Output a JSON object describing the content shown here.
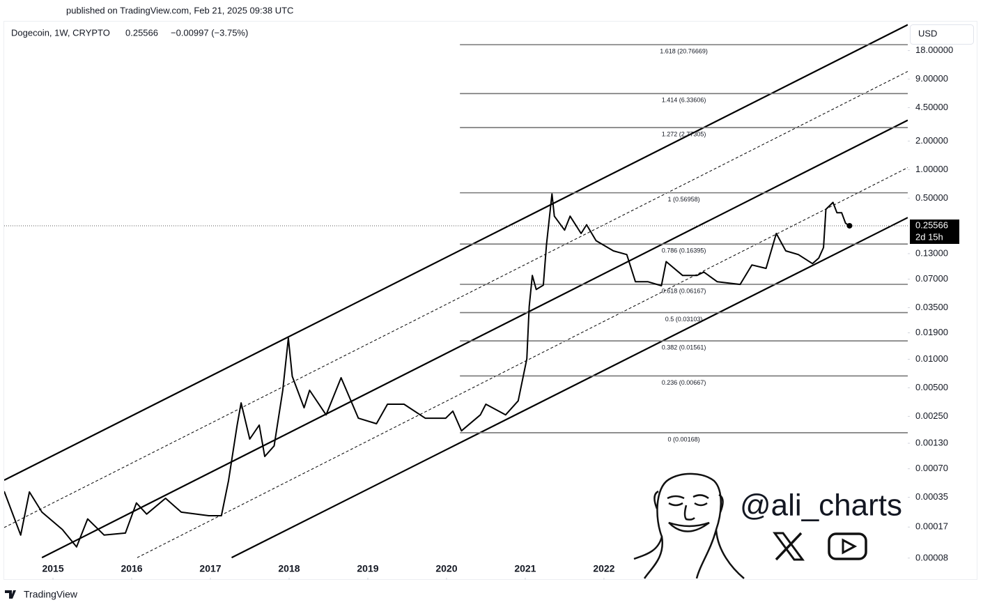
{
  "chart_data": {
    "type": "line",
    "published": "published on TradingView.com, Feb 21, 2025 09:38 UTC",
    "title": "Dogecoin, 1W, CRYPTO",
    "change": "−0.00997 (−3.75%)",
    "currency": "USD",
    "countdown": "2d 15h",
    "brand": "TradingView",
    "watermark": "@ali_charts",
    "color": "#000000",
    "log_scale": true,
    "x": [
      2014.38,
      2014.59,
      2014.7,
      2014.86,
      2015.12,
      2015.3,
      2015.44,
      2015.65,
      2015.92,
      2016.06,
      2016.19,
      2016.43,
      2016.63,
      2016.98,
      2017.14,
      2017.23,
      2017.34,
      2017.39,
      2017.5,
      2017.62,
      2017.69,
      2017.81,
      2017.92,
      2017.99,
      2018.04,
      2018.19,
      2018.26,
      2018.47,
      2018.66,
      2018.88,
      2019.11,
      2019.25,
      2019.46,
      2019.73,
      2019.99,
      2020.08,
      2020.19,
      2020.43,
      2020.5,
      2020.75,
      2020.91,
      2021.02,
      2021.05,
      2021.09,
      2021.14,
      2021.23,
      2021.27,
      2021.34,
      2021.37,
      2021.5,
      2021.57,
      2021.71,
      2021.78,
      2021.9,
      2022.12,
      2022.29,
      2022.4,
      2022.56,
      2022.73,
      2022.79,
      2023.0,
      2023.18,
      2023.27,
      2023.44,
      2023.73,
      2023.88,
      2024.06,
      2024.19,
      2024.31,
      2024.47,
      2024.65,
      2024.73,
      2024.79,
      2024.82,
      2024.91,
      2024.96,
      2025.02,
      2025.07,
      2025.12
    ],
    "values": [
      0.000405,
      0.00014,
      0.000399,
      0.000244,
      0.00016,
      0.000105,
      0.000207,
      0.00014,
      0.000147,
      0.000305,
      0.000233,
      0.000342,
      0.000244,
      0.000224,
      0.000224,
      0.000523,
      0.00202,
      0.00347,
      0.00144,
      0.00202,
      0.000944,
      0.00122,
      0.00471,
      0.0167,
      0.00661,
      0.00308,
      0.00471,
      0.00259,
      0.00639,
      0.00239,
      0.00209,
      0.00336,
      0.00336,
      0.00239,
      0.00239,
      0.00284,
      0.00176,
      0.00259,
      0.00336,
      0.00259,
      0.00364,
      0.0101,
      0.0359,
      0.0764,
      0.0544,
      0.0604,
      0.161,
      0.555,
      0.323,
      0.23,
      0.323,
      0.212,
      0.262,
      0.178,
      0.139,
      0.127,
      0.0657,
      0.0657,
      0.0596,
      0.107,
      0.0764,
      0.0764,
      0.0831,
      0.0657,
      0.0616,
      0.0988,
      0.0909,
      0.212,
      0.139,
      0.127,
      0.102,
      0.117,
      0.151,
      0.381,
      0.451,
      0.351,
      0.351,
      0.272,
      0.25566
    ],
    "xlim": [
      2014.38,
      2025.86
    ],
    "xticks": [
      2015,
      2016,
      2017,
      2018,
      2019,
      2020,
      2021,
      2022
    ],
    "ylim": [
      4.72e-05,
      37
    ],
    "yticks": [
      {
        "value": 18,
        "label": "18.00000"
      },
      {
        "value": 9,
        "label": "9.00000"
      },
      {
        "value": 4.5,
        "label": "4.50000"
      },
      {
        "value": 2,
        "label": "2.00000"
      },
      {
        "value": 1,
        "label": "1.00000"
      },
      {
        "value": 0.5,
        "label": "0.50000"
      },
      {
        "value": 0.13,
        "label": "0.13000"
      },
      {
        "value": 0.07,
        "label": "0.07000"
      },
      {
        "value": 0.035,
        "label": "0.03500"
      },
      {
        "value": 0.019,
        "label": "0.01900"
      },
      {
        "value": 0.01,
        "label": "0.01000"
      },
      {
        "value": 0.005,
        "label": "0.00500"
      },
      {
        "value": 0.0025,
        "label": "0.00250"
      },
      {
        "value": 0.0013,
        "label": "0.00130"
      },
      {
        "value": 0.0007,
        "label": "0.00070"
      },
      {
        "value": 0.00035,
        "label": "0.00035"
      },
      {
        "value": 0.00017,
        "label": "0.00017"
      },
      {
        "value": 8e-05,
        "label": "0.00008"
      }
    ],
    "fib_start": 2020.17,
    "fib_levels": [
      {
        "value": 20.76669,
        "label": "1.618 (20.76669)"
      },
      {
        "value": 6.33606,
        "label": "1.414 (6.33606)"
      },
      {
        "value": 2.77305,
        "label": "1.272 (2.77305)"
      },
      {
        "value": 0.56958,
        "label": "1 (0.56958)"
      },
      {
        "value": 0.16395,
        "label": "0.786 (0.16395)"
      },
      {
        "value": 0.06167,
        "label": "0.618 (0.06167)"
      },
      {
        "value": 0.03103,
        "label": "0.5 (0.03103)"
      },
      {
        "value": 0.01561,
        "label": "0.382 (0.01561)"
      },
      {
        "value": 0.00667,
        "label": "0.236 (0.00667)"
      },
      {
        "value": 0.00168,
        "label": "0 (0.00168)"
      }
    ],
    "channels": [
      {
        "style": "solid",
        "x": [
          2014.38,
          2025.86
        ],
        "y": [
          0.000531,
          33.7
        ]
      },
      {
        "style": "dashed",
        "x": [
          2014.38,
          2025.86
        ],
        "y": [
          0.000168,
          10.85
        ]
      },
      {
        "style": "solid",
        "x": [
          2014.86,
          2025.86
        ],
        "y": [
          8.09e-05,
          3.32
        ]
      },
      {
        "style": "dashed",
        "x": [
          2016.07,
          2025.86
        ],
        "y": [
          8.09e-05,
          1.05
        ]
      },
      {
        "style": "solid",
        "x": [
          2017.27,
          2025.86
        ],
        "y": [
          8.09e-05,
          0.312
        ]
      }
    ]
  }
}
